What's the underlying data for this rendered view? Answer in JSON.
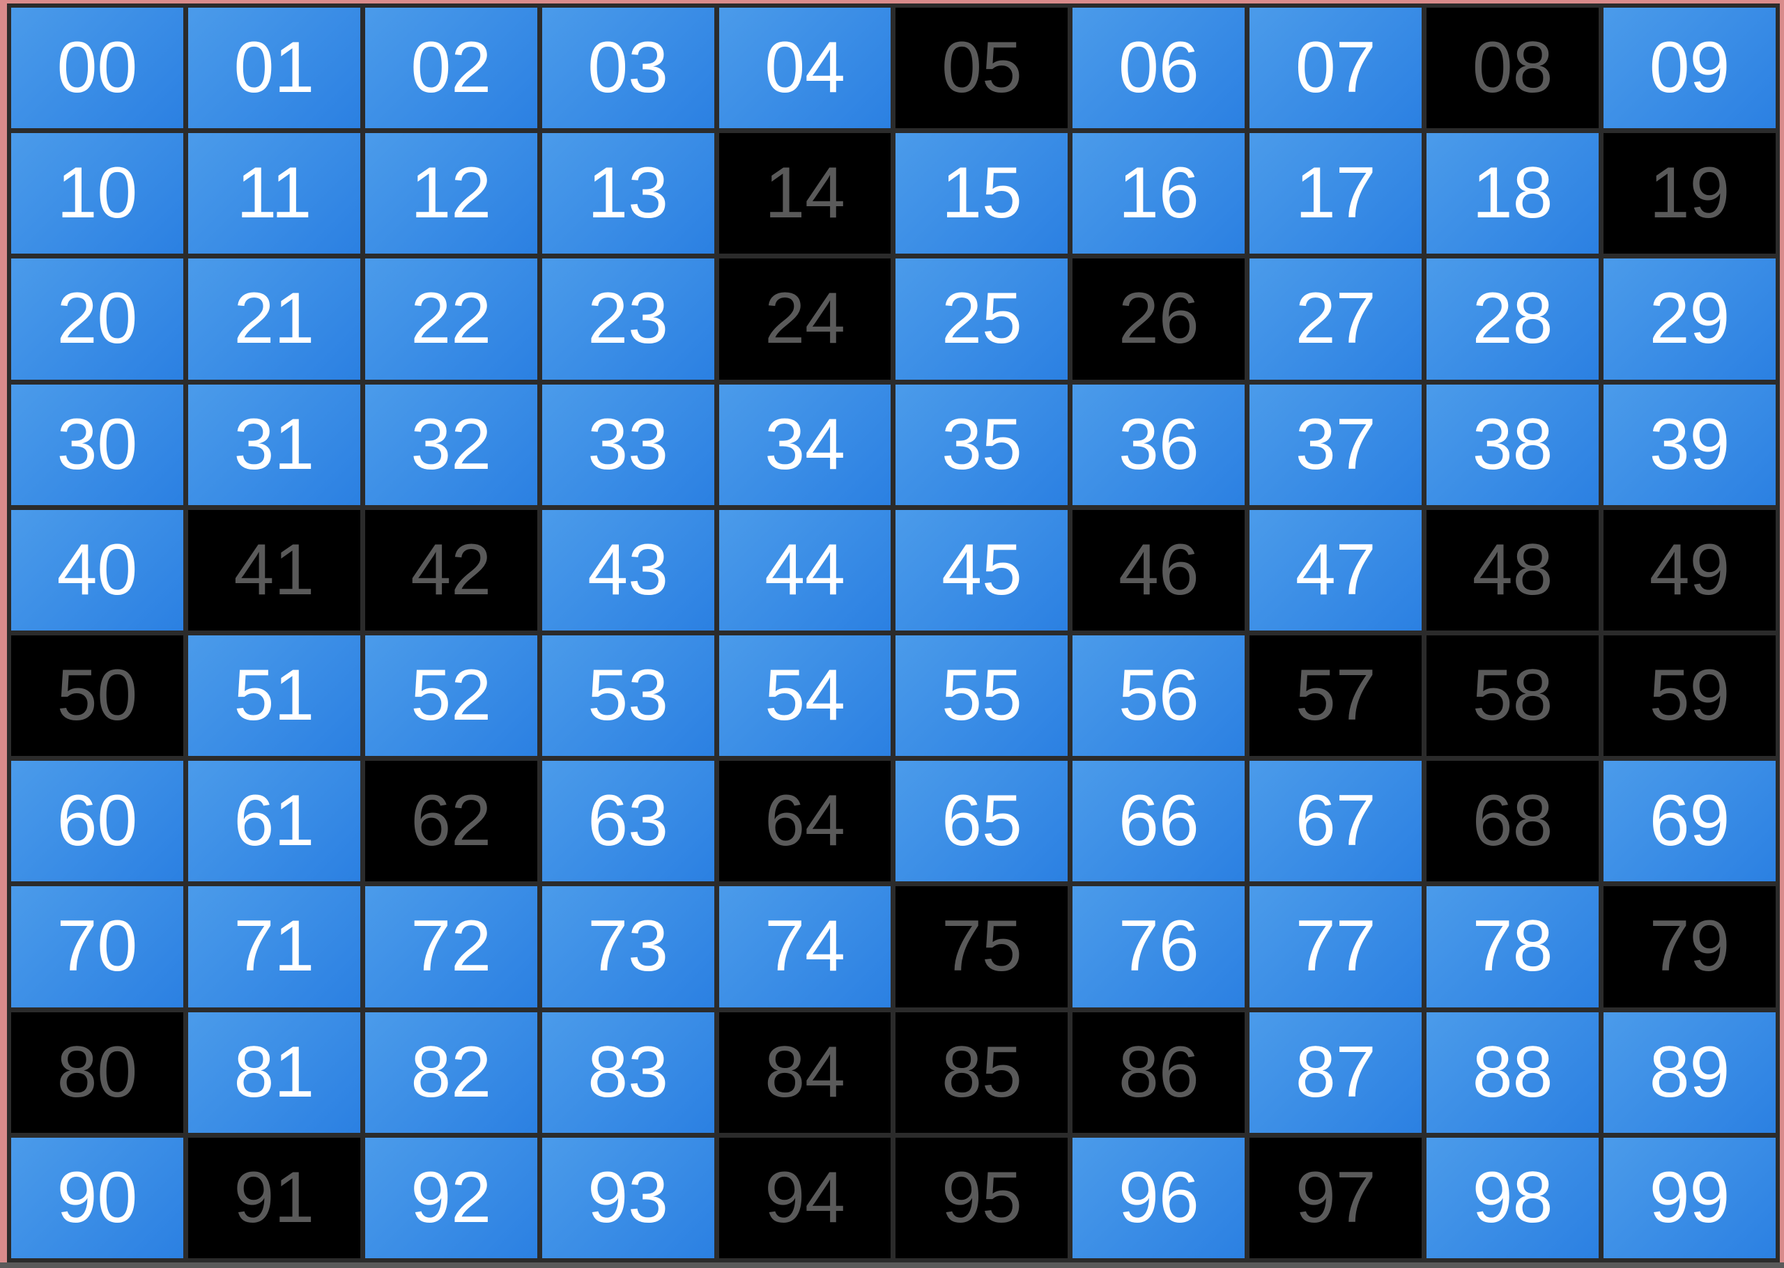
{
  "colors": {
    "on_bg": "#3a8de6",
    "on_text": "#ffffff",
    "off_bg": "#000000",
    "off_text": "#5a5a5a",
    "frame": "#d98b8b",
    "grid_border": "#2b2b2b"
  },
  "off_cells": [
    "05",
    "08",
    "14",
    "19",
    "24",
    "26",
    "41",
    "42",
    "46",
    "48",
    "49",
    "50",
    "57",
    "58",
    "59",
    "62",
    "64",
    "68",
    "75",
    "79",
    "80",
    "84",
    "85",
    "86",
    "91",
    "94",
    "95",
    "97"
  ],
  "cells": []
}
